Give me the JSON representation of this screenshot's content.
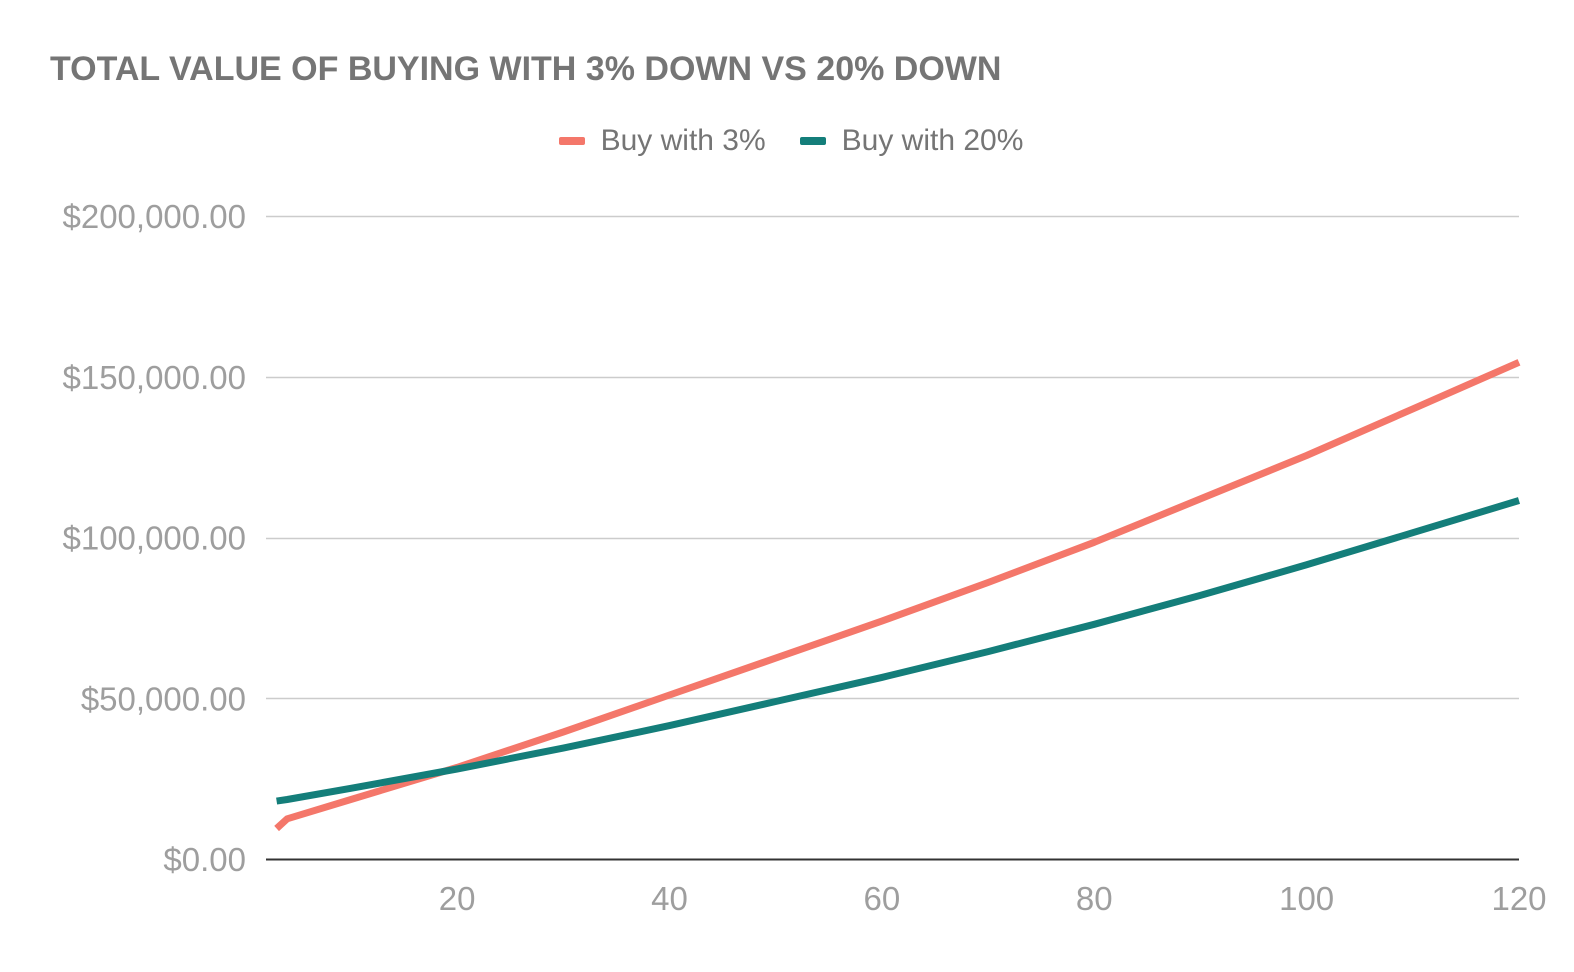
{
  "chart_data": {
    "type": "line",
    "title": "TOTAL VALUE OF BUYING WITH 3% DOWN VS 20% DOWN",
    "xlabel": "",
    "ylabel": "",
    "xlim": [
      2,
      120
    ],
    "ylim": [
      0,
      200000
    ],
    "x_ticks": [
      20,
      40,
      60,
      80,
      100,
      120
    ],
    "x_tick_labels": [
      "20",
      "40",
      "60",
      "80",
      "100",
      "120"
    ],
    "y_ticks": [
      0,
      50000,
      100000,
      150000,
      200000
    ],
    "y_tick_labels": [
      "$0.00",
      "$50,000.00",
      "$100,000.00",
      "$150,000.00",
      "$200,000.00"
    ],
    "grid": true,
    "legend_position": "top-center",
    "x": [
      3,
      4,
      10,
      20,
      30,
      40,
      50,
      60,
      70,
      80,
      90,
      100,
      110,
      120
    ],
    "series": [
      {
        "name": "Buy with 3%",
        "color": "#f4776a",
        "values": [
          9500,
          12500,
          18500,
          28500,
          39500,
          51000,
          62500,
          74000,
          86000,
          98500,
          112000,
          125500,
          140000,
          154500
        ]
      },
      {
        "name": "Buy with 20%",
        "color": "#147e7a",
        "values": [
          18000,
          18500,
          22000,
          28000,
          34500,
          41500,
          49000,
          56500,
          64500,
          73000,
          82000,
          91500,
          101500,
          111500
        ]
      }
    ]
  }
}
